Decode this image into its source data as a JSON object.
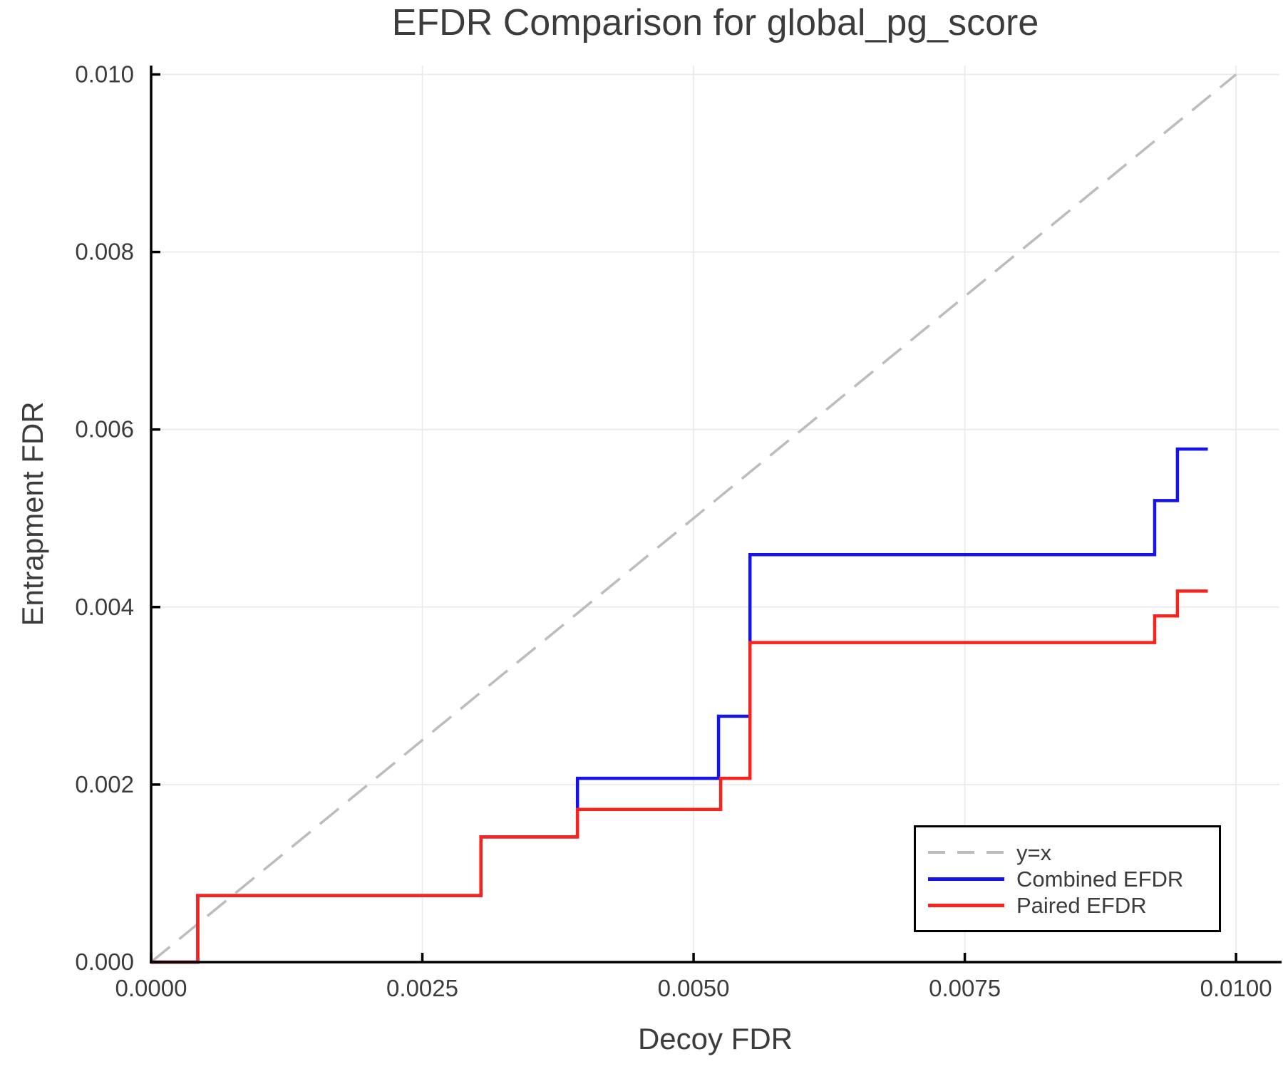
{
  "title": "EFDR Comparison for global_pg_score",
  "axes": {
    "xlabel": "Decoy FDR",
    "ylabel": "Entrapment FDR",
    "x_tick_labels": [
      "0.0000",
      "0.0025",
      "0.0050",
      "0.0075",
      "0.0100"
    ],
    "y_tick_labels": [
      "0.000",
      "0.002",
      "0.004",
      "0.006",
      "0.008",
      "0.010"
    ]
  },
  "colors": {
    "text": "#3c3c3c",
    "spine": "#000000",
    "grid": "#ebebeb",
    "background": "#ffffff",
    "diagonal": "#bcbcbc",
    "combined": "#1414e8",
    "paired": "#f8231c"
  },
  "legend": {
    "items": [
      {
        "label": "y=x",
        "color": "#bcbcbc",
        "style": "dashed"
      },
      {
        "label": "Combined EFDR",
        "color": "#1414e8",
        "style": "solid"
      },
      {
        "label": "Paired EFDR",
        "color": "#f8231c",
        "style": "solid"
      }
    ]
  },
  "chart_data": {
    "type": "line",
    "title": "EFDR Comparison for global_pg_score",
    "xlabel": "Decoy FDR",
    "ylabel": "Entrapment FDR",
    "xlim": [
      0,
      0.0104
    ],
    "ylim": [
      0,
      0.0101
    ],
    "x_ticks": [
      0,
      0.0025,
      0.005,
      0.0075,
      0.01
    ],
    "y_ticks": [
      0,
      0.002,
      0.004,
      0.006,
      0.008,
      0.01
    ],
    "grid": true,
    "legend_position": "lower right",
    "series": [
      {
        "name": "y=x",
        "style": "dashed",
        "color": "#bcbcbc",
        "width": 3.5,
        "x": [
          0,
          0.01
        ],
        "y": [
          0,
          0.01
        ]
      },
      {
        "name": "Combined EFDR",
        "style": "solid",
        "color": "#1414e8",
        "width": 4.5,
        "x": [
          0,
          0.00043,
          0.00043,
          0.00304,
          0.00304,
          0.00393,
          0.00393,
          0.00523,
          0.00523,
          0.00552,
          0.00552,
          0.00925,
          0.00925,
          0.00946,
          0.00946,
          0.00974
        ],
        "y": [
          0,
          0,
          0.00075,
          0.00075,
          0.00141,
          0.00141,
          0.00207,
          0.00207,
          0.00277,
          0.00277,
          0.00459,
          0.00459,
          0.0052,
          0.0052,
          0.00578,
          0.00578
        ]
      },
      {
        "name": "Paired EFDR",
        "style": "solid",
        "color": "#f8231c",
        "width": 4.5,
        "x": [
          0,
          0.00043,
          0.00043,
          0.00304,
          0.00304,
          0.00393,
          0.00393,
          0.00525,
          0.00525,
          0.00552,
          0.00552,
          0.00925,
          0.00925,
          0.00946,
          0.00946,
          0.00974
        ],
        "y": [
          0,
          0,
          0.00075,
          0.00075,
          0.00141,
          0.00141,
          0.00172,
          0.00172,
          0.00207,
          0.00207,
          0.0036,
          0.0036,
          0.0039,
          0.0039,
          0.00418,
          0.00418
        ]
      }
    ]
  }
}
